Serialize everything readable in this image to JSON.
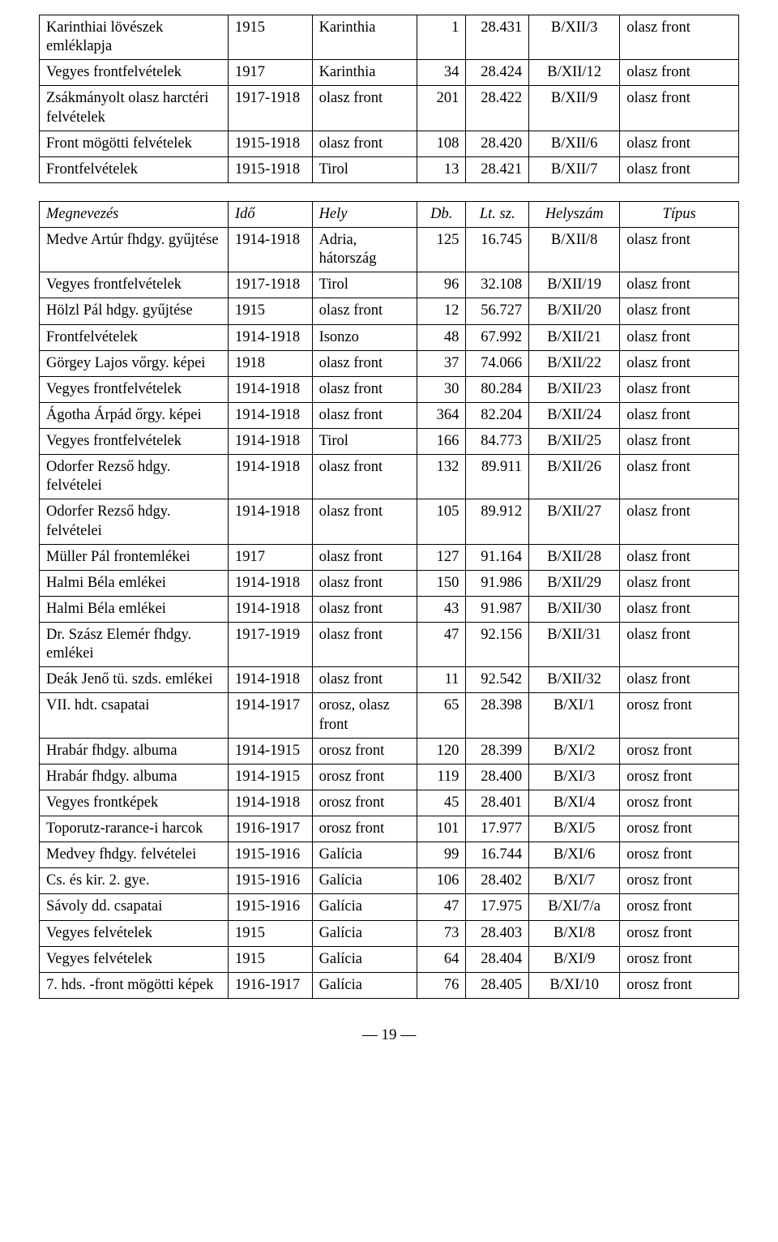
{
  "tables": [
    {
      "header": null,
      "rows": [
        {
          "name": "Karinthiai lövészek emléklapja",
          "ido": "1915",
          "hely": "Karinthia",
          "db": "1",
          "ltsz": "28.431",
          "hsz": "B/XII/3",
          "tipus": "olasz front"
        },
        {
          "name": "Vegyes frontfelvételek",
          "ido": "1917",
          "hely": "Karinthia",
          "db": "34",
          "ltsz": "28.424",
          "hsz": "B/XII/12",
          "tipus": "olasz front"
        },
        {
          "name": "Zsákmányolt olasz harctéri felvételek",
          "ido": "1917-1918",
          "hely": "olasz front",
          "db": "201",
          "ltsz": "28.422",
          "hsz": "B/XII/9",
          "tipus": "olasz front"
        },
        {
          "name": "Front mögötti felvételek",
          "ido": "1915-1918",
          "hely": "olasz front",
          "db": "108",
          "ltsz": "28.420",
          "hsz": "B/XII/6",
          "tipus": "olasz front"
        },
        {
          "name": "Frontfelvételek",
          "ido": "1915-1918",
          "hely": "Tirol",
          "db": "13",
          "ltsz": "28.421",
          "hsz": "B/XII/7",
          "tipus": "olasz front"
        }
      ]
    },
    {
      "header": {
        "name": "Megnevezés",
        "ido": "Idő",
        "hely": "Hely",
        "db": "Db.",
        "ltsz": "Lt. sz.",
        "hsz": "Helyszám",
        "tipus": "Típus"
      },
      "rows": [
        {
          "name": "Medve Artúr fhdgy. gyűjtése",
          "ido": "1914-1918",
          "hely": "Adria, hátország",
          "db": "125",
          "ltsz": "16.745",
          "hsz": "B/XII/8",
          "tipus": "olasz front"
        },
        {
          "name": "Vegyes frontfelvételek",
          "ido": "1917-1918",
          "hely": "Tirol",
          "db": "96",
          "ltsz": "32.108",
          "hsz": "B/XII/19",
          "tipus": "olasz front"
        },
        {
          "name": "Hölzl Pál hdgy. gyűjtése",
          "ido": "1915",
          "hely": "olasz front",
          "db": "12",
          "ltsz": "56.727",
          "hsz": "B/XII/20",
          "tipus": "olasz front"
        },
        {
          "name": "Frontfelvételek",
          "ido": "1914-1918",
          "hely": "Isonzo",
          "db": "48",
          "ltsz": "67.992",
          "hsz": "B/XII/21",
          "tipus": "olasz front"
        },
        {
          "name": "Görgey Lajos vőrgy. képei",
          "ido": "1918",
          "hely": "olasz front",
          "db": "37",
          "ltsz": "74.066",
          "hsz": "B/XII/22",
          "tipus": "olasz front"
        },
        {
          "name": "Vegyes frontfelvételek",
          "ido": "1914-1918",
          "hely": "olasz front",
          "db": "30",
          "ltsz": "80.284",
          "hsz": "B/XII/23",
          "tipus": "olasz front"
        },
        {
          "name": "Ágotha Árpád őrgy. képei",
          "ido": "1914-1918",
          "hely": "olasz front",
          "db": "364",
          "ltsz": "82.204",
          "hsz": "B/XII/24",
          "tipus": "olasz front"
        },
        {
          "name": "Vegyes frontfelvételek",
          "ido": "1914-1918",
          "hely": "Tirol",
          "db": "166",
          "ltsz": "84.773",
          "hsz": "B/XII/25",
          "tipus": "olasz front"
        },
        {
          "name": "Odorfer Rezső hdgy. felvételei",
          "ido": "1914-1918",
          "hely": "olasz front",
          "db": "132",
          "ltsz": "89.911",
          "hsz": "B/XII/26",
          "tipus": "olasz front"
        },
        {
          "name": "Odorfer Rezső hdgy. felvételei",
          "ido": "1914-1918",
          "hely": "olasz front",
          "db": "105",
          "ltsz": "89.912",
          "hsz": "B/XII/27",
          "tipus": "olasz front"
        },
        {
          "name": "Müller Pál frontemlékei",
          "ido": "1917",
          "hely": "olasz front",
          "db": "127",
          "ltsz": "91.164",
          "hsz": "B/XII/28",
          "tipus": "olasz front"
        },
        {
          "name": "Halmi Béla emlékei",
          "ido": "1914-1918",
          "hely": "olasz front",
          "db": "150",
          "ltsz": "91.986",
          "hsz": "B/XII/29",
          "tipus": "olasz front"
        },
        {
          "name": "Halmi Béla emlékei",
          "ido": "1914-1918",
          "hely": "olasz front",
          "db": "43",
          "ltsz": "91.987",
          "hsz": "B/XII/30",
          "tipus": "olasz front"
        },
        {
          "name": "Dr. Szász Elemér fhdgy. emlékei",
          "ido": "1917-1919",
          "hely": "olasz front",
          "db": "47",
          "ltsz": "92.156",
          "hsz": "B/XII/31",
          "tipus": "olasz front"
        },
        {
          "name": "Deák Jenő tü. szds. emlékei",
          "ido": "1914-1918",
          "hely": "olasz front",
          "db": "11",
          "ltsz": "92.542",
          "hsz": "B/XII/32",
          "tipus": "olasz front"
        },
        {
          "name": "VII. hdt. csapatai",
          "ido": "1914-1917",
          "hely": "orosz, olasz front",
          "db": "65",
          "ltsz": "28.398",
          "hsz": "B/XI/1",
          "tipus": "orosz front"
        },
        {
          "name": "Hrabár fhdgy. albuma",
          "ido": "1914-1915",
          "hely": "orosz front",
          "db": "120",
          "ltsz": "28.399",
          "hsz": "B/XI/2",
          "tipus": "orosz front"
        },
        {
          "name": "Hrabár fhdgy. albuma",
          "ido": "1914-1915",
          "hely": "orosz front",
          "db": "119",
          "ltsz": "28.400",
          "hsz": "B/XI/3",
          "tipus": "orosz front"
        },
        {
          "name": "Vegyes frontképek",
          "ido": "1914-1918",
          "hely": "orosz front",
          "db": "45",
          "ltsz": "28.401",
          "hsz": "B/XI/4",
          "tipus": "orosz front"
        },
        {
          "name": "Toporutz-rarance-i harcok",
          "ido": "1916-1917",
          "hely": "orosz front",
          "db": "101",
          "ltsz": "17.977",
          "hsz": "B/XI/5",
          "tipus": "orosz front"
        },
        {
          "name": "Medvey fhdgy. felvételei",
          "ido": "1915-1916",
          "hely": "Galícia",
          "db": "99",
          "ltsz": "16.744",
          "hsz": "B/XI/6",
          "tipus": "orosz front"
        },
        {
          "name": "Cs. és kir. 2. gye.",
          "ido": "1915-1916",
          "hely": "Galícia",
          "db": "106",
          "ltsz": "28.402",
          "hsz": "B/XI/7",
          "tipus": "orosz front"
        },
        {
          "name": "Sávoly dd. csapatai",
          "ido": "1915-1916",
          "hely": "Galícia",
          "db": "47",
          "ltsz": "17.975",
          "hsz": "B/XI/7/a",
          "tipus": "orosz front"
        },
        {
          "name": "Vegyes felvételek",
          "ido": "1915",
          "hely": "Galícia",
          "db": "73",
          "ltsz": "28.403",
          "hsz": "B/XI/8",
          "tipus": "orosz front"
        },
        {
          "name": "Vegyes felvételek",
          "ido": "1915",
          "hely": "Galícia",
          "db": "64",
          "ltsz": "28.404",
          "hsz": "B/XI/9",
          "tipus": "orosz front"
        },
        {
          "name": "7. hds. -front mögötti képek",
          "ido": "1916-1917",
          "hely": "Galícia",
          "db": "76",
          "ltsz": "28.405",
          "hsz": "B/XI/10",
          "tipus": "orosz front"
        }
      ]
    }
  ],
  "page_number": "— 19 —"
}
